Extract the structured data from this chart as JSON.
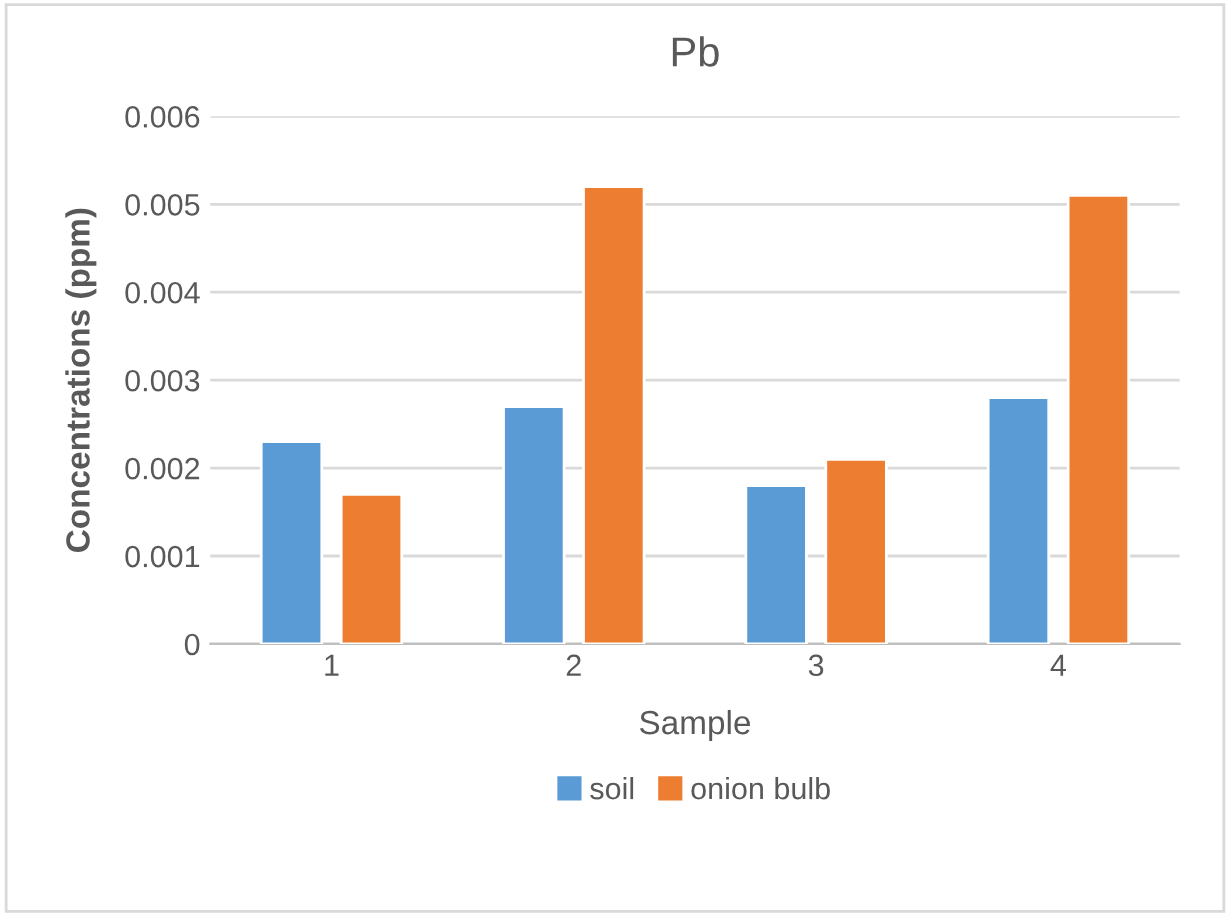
{
  "chart_data": {
    "type": "bar",
    "title": "Pb",
    "xlabel": "Sample",
    "ylabel": "Concentrations (ppm)",
    "categories": [
      "1",
      "2",
      "3",
      "4"
    ],
    "series": [
      {
        "name": "soil",
        "color": "#5b9bd5",
        "values": [
          0.0023,
          0.0027,
          0.0018,
          0.0028
        ]
      },
      {
        "name": "onion bulb",
        "color": "#ed7d31",
        "values": [
          0.0017,
          0.0052,
          0.0021,
          0.0051
        ]
      }
    ],
    "ylim": [
      0,
      0.006
    ],
    "yticks": [
      0,
      0.001,
      0.002,
      0.003,
      0.004,
      0.005,
      0.006
    ],
    "grid": "y",
    "legend": "bottom"
  }
}
